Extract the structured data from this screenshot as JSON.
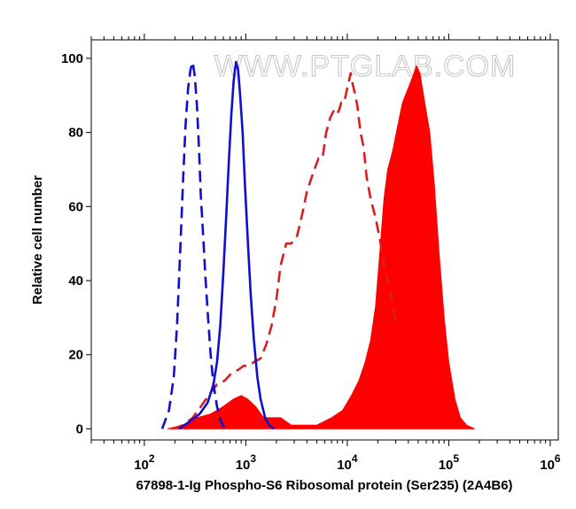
{
  "chart_data": {
    "type": "histogram",
    "title": "",
    "xlabel": "67898-1-Ig Phospho-S6 Ribosomal protein (Ser235) (2A4B6)",
    "ylabel": "Relative cell number",
    "xscale": "log",
    "xlim": [
      30,
      1200000
    ],
    "ylim": [
      -3,
      105
    ],
    "x_ticks": [
      {
        "value": 100,
        "base": "10",
        "exp": "2"
      },
      {
        "value": 1000,
        "base": "10",
        "exp": "3"
      },
      {
        "value": 10000,
        "base": "10",
        "exp": "4"
      },
      {
        "value": 100000,
        "base": "10",
        "exp": "5"
      },
      {
        "value": 1000000,
        "base": "10",
        "exp": "6"
      }
    ],
    "y_ticks": [
      0,
      20,
      40,
      60,
      80,
      100
    ],
    "watermark": "WWW.PTGLAB.COM",
    "grid": false,
    "legend": "none",
    "series": [
      {
        "style": "filled",
        "color": "#ff0000",
        "points": [
          [
            170,
            0
          ],
          [
            240,
            1
          ],
          [
            330,
            3
          ],
          [
            450,
            4
          ],
          [
            600,
            6
          ],
          [
            750,
            8
          ],
          [
            900,
            9
          ],
          [
            1050,
            8
          ],
          [
            1250,
            6
          ],
          [
            1500,
            3
          ],
          [
            1800,
            3
          ],
          [
            2200,
            3
          ],
          [
            2800,
            1
          ],
          [
            3500,
            1
          ],
          [
            5000,
            1
          ],
          [
            7000,
            3
          ],
          [
            9000,
            5
          ],
          [
            11000,
            9
          ],
          [
            13000,
            13
          ],
          [
            15000,
            18
          ],
          [
            17000,
            24
          ],
          [
            19000,
            33
          ],
          [
            21000,
            48
          ],
          [
            23000,
            62
          ],
          [
            25000,
            70
          ],
          [
            28000,
            75
          ],
          [
            31000,
            81
          ],
          [
            35000,
            88
          ],
          [
            40000,
            92
          ],
          [
            44000,
            95
          ],
          [
            48000,
            98
          ],
          [
            52000,
            96
          ],
          [
            58000,
            88
          ],
          [
            65000,
            80
          ],
          [
            72000,
            66
          ],
          [
            80000,
            48
          ],
          [
            90000,
            30
          ],
          [
            100000,
            18
          ],
          [
            115000,
            8
          ],
          [
            130000,
            3
          ],
          [
            150000,
            1
          ],
          [
            180000,
            0
          ]
        ]
      },
      {
        "style": "dashed",
        "color": "#d62020",
        "points": [
          [
            190,
            0
          ],
          [
            240,
            1
          ],
          [
            300,
            3
          ],
          [
            360,
            6
          ],
          [
            430,
            9
          ],
          [
            520,
            12
          ],
          [
            620,
            13
          ],
          [
            720,
            15
          ],
          [
            850,
            16
          ],
          [
            950,
            17
          ],
          [
            1050,
            17
          ],
          [
            1200,
            18
          ],
          [
            1400,
            19
          ],
          [
            1600,
            23
          ],
          [
            1800,
            28
          ],
          [
            2000,
            35
          ],
          [
            2200,
            44
          ],
          [
            2500,
            50
          ],
          [
            2800,
            50
          ],
          [
            3200,
            52
          ],
          [
            3600,
            58
          ],
          [
            4000,
            64
          ],
          [
            4600,
            69
          ],
          [
            5200,
            73
          ],
          [
            5700,
            73
          ],
          [
            6200,
            80
          ],
          [
            6800,
            84
          ],
          [
            7400,
            86
          ],
          [
            7900,
            85
          ],
          [
            8300,
            86
          ],
          [
            8700,
            88
          ],
          [
            9300,
            88
          ],
          [
            10000,
            92
          ],
          [
            10800,
            96
          ],
          [
            11300,
            93
          ],
          [
            12000,
            90
          ],
          [
            12600,
            87
          ],
          [
            13500,
            80
          ],
          [
            14500,
            76
          ],
          [
            15500,
            68
          ],
          [
            17000,
            62
          ],
          [
            19000,
            57
          ],
          [
            21000,
            51
          ],
          [
            23500,
            43
          ],
          [
            26000,
            39
          ],
          [
            28500,
            32
          ],
          [
            30000,
            28
          ]
        ]
      },
      {
        "style": "solid",
        "color": "#1010cc",
        "points": [
          [
            220,
            0
          ],
          [
            280,
            2
          ],
          [
            350,
            4
          ],
          [
            420,
            7
          ],
          [
            480,
            12
          ],
          [
            520,
            18
          ],
          [
            560,
            28
          ],
          [
            600,
            42
          ],
          [
            640,
            57
          ],
          [
            680,
            72
          ],
          [
            720,
            85
          ],
          [
            760,
            94
          ],
          [
            800,
            99
          ],
          [
            840,
            97
          ],
          [
            880,
            90
          ],
          [
            930,
            80
          ],
          [
            980,
            66
          ],
          [
            1050,
            50
          ],
          [
            1120,
            36
          ],
          [
            1200,
            24
          ],
          [
            1300,
            14
          ],
          [
            1400,
            8
          ],
          [
            1550,
            3
          ],
          [
            1700,
            1
          ],
          [
            1900,
            0
          ]
        ]
      },
      {
        "style": "dashed",
        "color": "#1010cc",
        "points": [
          [
            150,
            0
          ],
          [
            175,
            5
          ],
          [
            195,
            14
          ],
          [
            210,
            28
          ],
          [
            225,
            47
          ],
          [
            240,
            66
          ],
          [
            255,
            82
          ],
          [
            270,
            92
          ],
          [
            285,
            97
          ],
          [
            300,
            99
          ],
          [
            315,
            95
          ],
          [
            330,
            87
          ],
          [
            345,
            76
          ],
          [
            360,
            63
          ],
          [
            380,
            52
          ],
          [
            400,
            41
          ],
          [
            425,
            30
          ],
          [
            450,
            20
          ],
          [
            480,
            12
          ],
          [
            520,
            6
          ],
          [
            570,
            2
          ],
          [
            620,
            0
          ]
        ]
      }
    ]
  }
}
